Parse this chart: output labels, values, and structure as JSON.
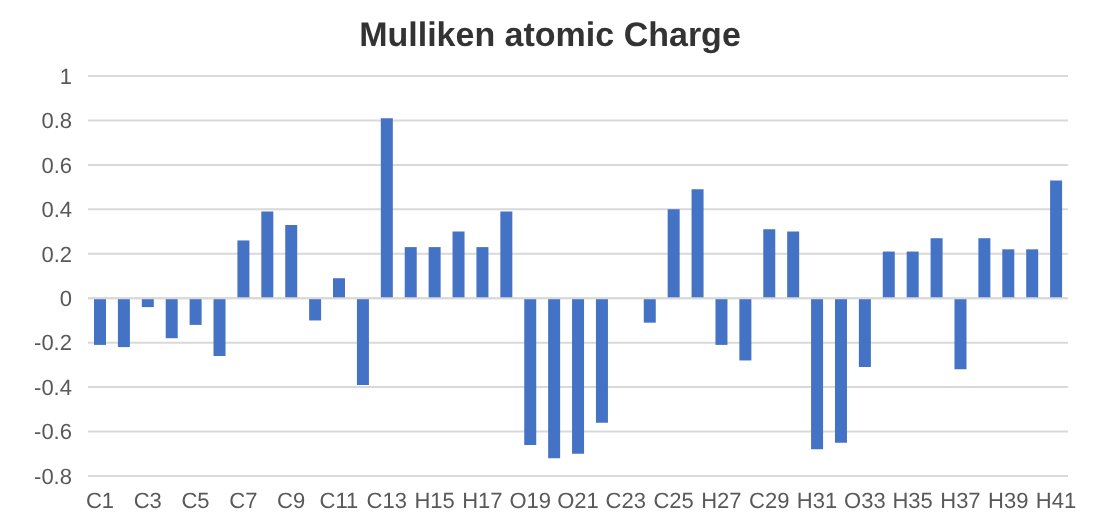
{
  "chart_data": {
    "type": "bar",
    "title": "Mulliken atomic  Charge",
    "categories": [
      "C1",
      null,
      "C3",
      null,
      "C5",
      null,
      "C7",
      null,
      "C9",
      null,
      "C11",
      null,
      "C13",
      null,
      "H15",
      null,
      "H17",
      null,
      "O19",
      null,
      "O21",
      null,
      "C23",
      null,
      "C25",
      null,
      "H27",
      null,
      "C29",
      null,
      "H31",
      null,
      "O33",
      null,
      "H35",
      null,
      "H37",
      null,
      "H39",
      null,
      "H41"
    ],
    "values": [
      -0.21,
      -0.22,
      -0.04,
      -0.18,
      -0.12,
      -0.26,
      0.26,
      0.39,
      0.33,
      -0.1,
      0.09,
      -0.39,
      0.81,
      0.23,
      0.23,
      0.3,
      0.23,
      0.39,
      -0.66,
      -0.72,
      -0.7,
      -0.56,
      0,
      -0.11,
      0.4,
      0.49,
      -0.21,
      -0.28,
      0.31,
      0.3,
      -0.68,
      -0.65,
      -0.31,
      0.21,
      0.21,
      0.27,
      -0.32,
      0.27,
      0.22,
      0.22,
      0.53
    ],
    "color": "#4472c4",
    "ylim": [
      -0.8,
      1
    ],
    "yticks": [
      -0.8,
      -0.6,
      -0.4,
      -0.2,
      0,
      0.2,
      0.4,
      0.6,
      0.8,
      1
    ],
    "grid": "y",
    "legend": false
  }
}
